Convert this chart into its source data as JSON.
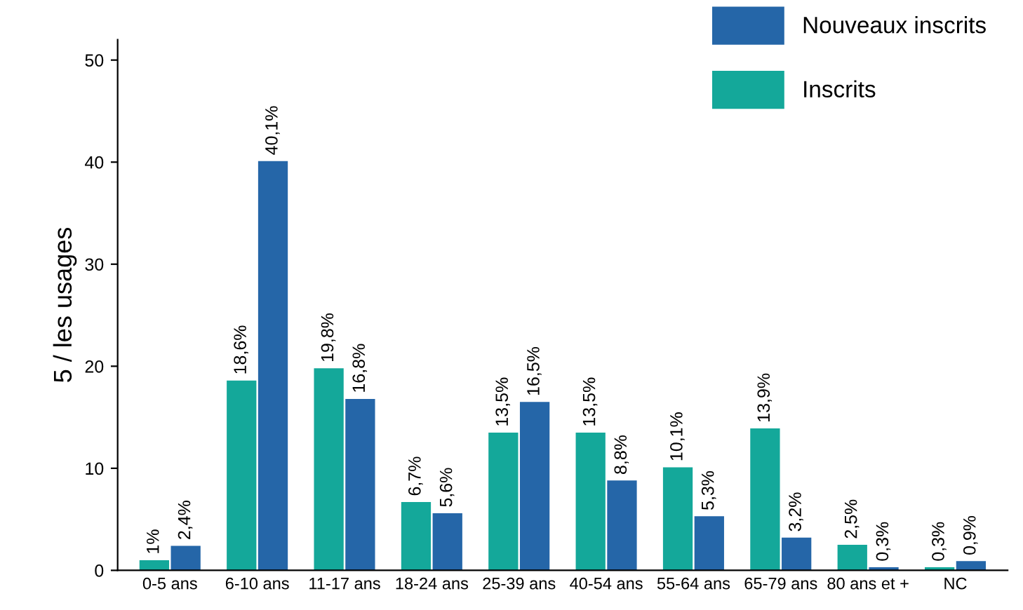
{
  "chart_data": {
    "type": "bar",
    "ylabel": "5 / les usages",
    "categories": [
      "0-5 ans",
      "6-10 ans",
      "11-17 ans",
      "18-24 ans",
      "25-39 ans",
      "40-54 ans",
      "55-64 ans",
      "65-79 ans",
      "80 ans et +",
      "NC"
    ],
    "series": [
      {
        "name": "Inscrits",
        "color": "#14a89a",
        "values": [
          1,
          18.6,
          19.8,
          6.7,
          13.5,
          13.5,
          10.1,
          13.9,
          2.5,
          0.3
        ],
        "value_labels": [
          "1%",
          "18,6%",
          "19,8%",
          "6,7%",
          "13,5%",
          "13,5%",
          "10,1%",
          "13,9%",
          "2,5%",
          "0,3%"
        ]
      },
      {
        "name": "Nouveaux inscrits",
        "color": "#2566a8",
        "values": [
          2.4,
          40.1,
          16.8,
          5.6,
          16.5,
          8.8,
          5.3,
          3.2,
          0.3,
          0.9
        ],
        "value_labels": [
          "2,4%",
          "40,1%",
          "16,8%",
          "5,6%",
          "16,5%",
          "8,8%",
          "5,3%",
          "3,2%",
          "0,3%",
          "0,9%"
        ]
      }
    ],
    "ylim": [
      0,
      52
    ],
    "yticks": [
      0,
      10,
      20,
      30,
      40,
      50
    ],
    "grid": false,
    "legend": "top right"
  }
}
